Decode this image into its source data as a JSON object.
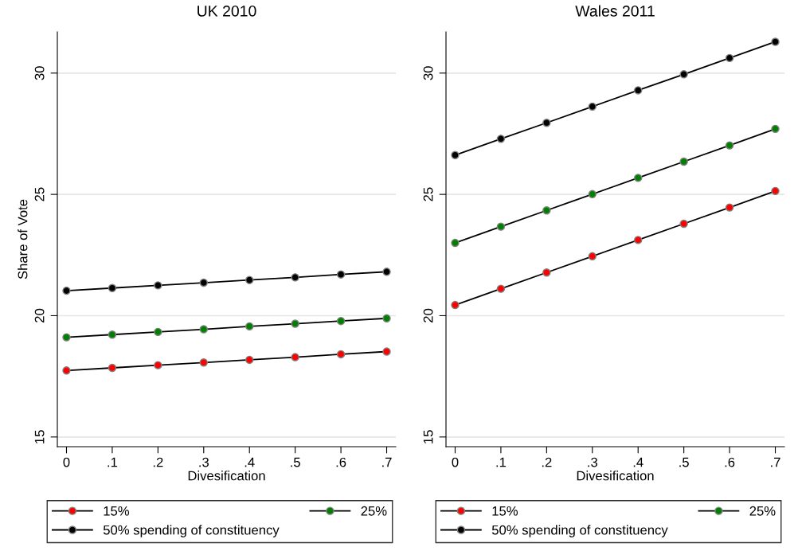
{
  "chart_data": [
    {
      "type": "line",
      "title": "UK 2010",
      "xlabel": "Divesification",
      "ylabel": "Share of Vote",
      "x": [
        0,
        0.1,
        0.2,
        0.3,
        0.4,
        0.5,
        0.6,
        0.7
      ],
      "xlim": [
        -0.02,
        0.72
      ],
      "ylim": [
        14.6,
        31.7
      ],
      "xticks": [
        {
          "value": 0,
          "label": "0"
        },
        {
          "value": 0.1,
          "label": ".1"
        },
        {
          "value": 0.2,
          "label": ".2"
        },
        {
          "value": 0.3,
          "label": ".3"
        },
        {
          "value": 0.4,
          "label": ".4"
        },
        {
          "value": 0.5,
          "label": ".5"
        },
        {
          "value": 0.6,
          "label": ".6"
        },
        {
          "value": 0.7,
          "label": ".7"
        }
      ],
      "yticks": [
        15,
        20,
        25,
        30
      ],
      "grid": "y",
      "legend": "bottom",
      "marker": "circle",
      "line_style": "solid",
      "series": [
        {
          "name": "15%",
          "color": "#ff0000",
          "values": [
            17.74,
            17.85,
            17.96,
            18.07,
            18.18,
            18.29,
            18.41,
            18.52
          ]
        },
        {
          "name": "25%",
          "color": "#008000",
          "values": [
            19.11,
            19.22,
            19.33,
            19.44,
            19.56,
            19.67,
            19.78,
            19.89
          ]
        },
        {
          "name": "50% spending of constituency",
          "color": "#000000",
          "values": [
            21.03,
            21.14,
            21.25,
            21.36,
            21.47,
            21.58,
            21.7,
            21.81
          ]
        }
      ]
    },
    {
      "type": "line",
      "title": "Wales 2011",
      "xlabel": "Divesification",
      "x": [
        0,
        0.1,
        0.2,
        0.3,
        0.4,
        0.5,
        0.6,
        0.7
      ],
      "xlim": [
        -0.02,
        0.72
      ],
      "ylim": [
        14.6,
        31.7
      ],
      "xticks": [
        {
          "value": 0,
          "label": "0"
        },
        {
          "value": 0.1,
          "label": ".1"
        },
        {
          "value": 0.2,
          "label": ".2"
        },
        {
          "value": 0.3,
          "label": ".3"
        },
        {
          "value": 0.4,
          "label": ".4"
        },
        {
          "value": 0.5,
          "label": ".5"
        },
        {
          "value": 0.6,
          "label": ".6"
        },
        {
          "value": 0.7,
          "label": ".7"
        }
      ],
      "yticks": [
        15,
        20,
        25,
        30
      ],
      "grid": "y",
      "legend": "bottom",
      "marker": "circle",
      "line_style": "solid",
      "series": [
        {
          "name": "15%",
          "color": "#ff0000",
          "values": [
            20.44,
            21.11,
            21.78,
            22.45,
            23.12,
            23.79,
            24.46,
            25.14
          ]
        },
        {
          "name": "25%",
          "color": "#008000",
          "values": [
            23.0,
            23.67,
            24.34,
            25.01,
            25.68,
            26.35,
            27.02,
            27.7
          ]
        },
        {
          "name": "50% spending of constituency",
          "color": "#000000",
          "values": [
            26.62,
            27.29,
            27.95,
            28.62,
            29.29,
            29.95,
            30.62,
            31.29
          ]
        }
      ]
    }
  ]
}
